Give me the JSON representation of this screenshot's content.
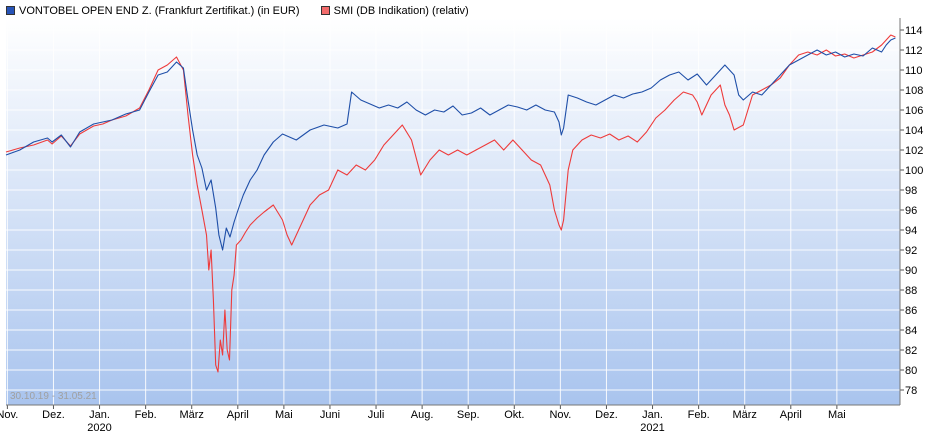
{
  "legend": {
    "vontobel_label": "VONTOBEL OPEN END Z. (Frankfurt Zertifikat.) (in EUR)",
    "smi_label": "SMI (DB Indikation) (relativ)"
  },
  "date_range": "30.10.19 - 31.05.21",
  "chart_data": {
    "type": "line",
    "ylim": [
      76.5,
      115.2
    ],
    "xlim": [
      0,
      19.4
    ],
    "yticks": [
      78,
      80,
      82,
      84,
      86,
      88,
      90,
      92,
      94,
      96,
      98,
      100,
      102,
      104,
      106,
      108,
      110,
      112,
      114
    ],
    "xticks": [
      {
        "t": 0.03,
        "label": "Nov.",
        "year": ""
      },
      {
        "t": 1.03,
        "label": "Dez.",
        "year": ""
      },
      {
        "t": 2.03,
        "label": "Jan.",
        "year": "2020"
      },
      {
        "t": 3.03,
        "label": "Feb.",
        "year": ""
      },
      {
        "t": 4.03,
        "label": "März",
        "year": ""
      },
      {
        "t": 5.03,
        "label": "April",
        "year": ""
      },
      {
        "t": 6.03,
        "label": "Mai",
        "year": ""
      },
      {
        "t": 7.03,
        "label": "Juni",
        "year": ""
      },
      {
        "t": 8.03,
        "label": "Juli",
        "year": ""
      },
      {
        "t": 9.03,
        "label": "Aug.",
        "year": ""
      },
      {
        "t": 10.03,
        "label": "Sep.",
        "year": ""
      },
      {
        "t": 11.03,
        "label": "Okt.",
        "year": ""
      },
      {
        "t": 12.03,
        "label": "Nov.",
        "year": ""
      },
      {
        "t": 13.03,
        "label": "Dez.",
        "year": ""
      },
      {
        "t": 14.03,
        "label": "Jan.",
        "year": "2021"
      },
      {
        "t": 15.03,
        "label": "Feb.",
        "year": ""
      },
      {
        "t": 16.03,
        "label": "März",
        "year": ""
      },
      {
        "t": 17.03,
        "label": "April",
        "year": ""
      },
      {
        "t": 18.03,
        "label": "Mai",
        "year": ""
      }
    ],
    "grid": true,
    "legend_position": "top-left",
    "series": [
      {
        "name": "VONTOBEL OPEN END Z. (Frankfurt Zertifikat.) (in EUR)",
        "color": "#1f4fa8",
        "points": [
          [
            0.0,
            101.5
          ],
          [
            0.3,
            102.0
          ],
          [
            0.6,
            102.8
          ],
          [
            0.9,
            103.2
          ],
          [
            1.0,
            102.8
          ],
          [
            1.2,
            103.5
          ],
          [
            1.4,
            102.3
          ],
          [
            1.6,
            103.8
          ],
          [
            1.9,
            104.6
          ],
          [
            2.1,
            104.8
          ],
          [
            2.3,
            105.0
          ],
          [
            2.6,
            105.6
          ],
          [
            2.9,
            106.0
          ],
          [
            3.1,
            107.8
          ],
          [
            3.3,
            109.5
          ],
          [
            3.5,
            109.8
          ],
          [
            3.7,
            110.8
          ],
          [
            3.85,
            110.2
          ],
          [
            3.95,
            107.0
          ],
          [
            4.05,
            104.0
          ],
          [
            4.15,
            101.5
          ],
          [
            4.25,
            100.2
          ],
          [
            4.35,
            98.0
          ],
          [
            4.45,
            99.0
          ],
          [
            4.55,
            96.2
          ],
          [
            4.62,
            93.5
          ],
          [
            4.7,
            92.0
          ],
          [
            4.78,
            94.2
          ],
          [
            4.86,
            93.3
          ],
          [
            4.95,
            94.8
          ],
          [
            5.05,
            96.2
          ],
          [
            5.15,
            97.5
          ],
          [
            5.3,
            99.0
          ],
          [
            5.45,
            100.0
          ],
          [
            5.6,
            101.5
          ],
          [
            5.8,
            102.8
          ],
          [
            6.0,
            103.6
          ],
          [
            6.3,
            103.0
          ],
          [
            6.6,
            104.0
          ],
          [
            6.9,
            104.5
          ],
          [
            7.2,
            104.2
          ],
          [
            7.4,
            104.6
          ],
          [
            7.5,
            107.8
          ],
          [
            7.7,
            107.0
          ],
          [
            7.9,
            106.6
          ],
          [
            8.1,
            106.2
          ],
          [
            8.3,
            106.5
          ],
          [
            8.5,
            106.2
          ],
          [
            8.7,
            106.8
          ],
          [
            8.9,
            106.0
          ],
          [
            9.1,
            105.5
          ],
          [
            9.3,
            106.0
          ],
          [
            9.5,
            105.8
          ],
          [
            9.7,
            106.4
          ],
          [
            9.9,
            105.5
          ],
          [
            10.1,
            105.7
          ],
          [
            10.3,
            106.2
          ],
          [
            10.5,
            105.5
          ],
          [
            10.7,
            106.0
          ],
          [
            10.9,
            106.5
          ],
          [
            11.1,
            106.3
          ],
          [
            11.3,
            106.0
          ],
          [
            11.5,
            106.5
          ],
          [
            11.7,
            106.0
          ],
          [
            11.9,
            105.8
          ],
          [
            12.0,
            104.8
          ],
          [
            12.05,
            103.5
          ],
          [
            12.1,
            104.2
          ],
          [
            12.2,
            107.5
          ],
          [
            12.4,
            107.2
          ],
          [
            12.6,
            106.8
          ],
          [
            12.8,
            106.5
          ],
          [
            13.0,
            107.0
          ],
          [
            13.2,
            107.5
          ],
          [
            13.4,
            107.2
          ],
          [
            13.6,
            107.6
          ],
          [
            13.8,
            107.8
          ],
          [
            14.0,
            108.2
          ],
          [
            14.2,
            109.0
          ],
          [
            14.4,
            109.5
          ],
          [
            14.6,
            109.8
          ],
          [
            14.8,
            109.0
          ],
          [
            15.0,
            109.6
          ],
          [
            15.2,
            108.5
          ],
          [
            15.4,
            109.5
          ],
          [
            15.6,
            110.5
          ],
          [
            15.8,
            109.5
          ],
          [
            15.9,
            107.5
          ],
          [
            16.0,
            107.0
          ],
          [
            16.2,
            107.8
          ],
          [
            16.4,
            107.5
          ],
          [
            16.6,
            108.5
          ],
          [
            16.8,
            109.5
          ],
          [
            17.0,
            110.5
          ],
          [
            17.2,
            111.0
          ],
          [
            17.4,
            111.5
          ],
          [
            17.6,
            112.0
          ],
          [
            17.8,
            111.5
          ],
          [
            18.0,
            111.8
          ],
          [
            18.2,
            111.3
          ],
          [
            18.4,
            111.6
          ],
          [
            18.6,
            111.4
          ],
          [
            18.8,
            112.2
          ],
          [
            19.0,
            111.8
          ],
          [
            19.1,
            112.5
          ],
          [
            19.2,
            113.0
          ],
          [
            19.3,
            113.2
          ]
        ]
      },
      {
        "name": "SMI (DB Indikation) (relativ)",
        "color": "#ee3b3b",
        "points": [
          [
            0.0,
            101.8
          ],
          [
            0.3,
            102.2
          ],
          [
            0.6,
            102.5
          ],
          [
            0.9,
            103.0
          ],
          [
            1.0,
            102.6
          ],
          [
            1.2,
            103.4
          ],
          [
            1.4,
            102.4
          ],
          [
            1.6,
            103.6
          ],
          [
            1.9,
            104.4
          ],
          [
            2.1,
            104.6
          ],
          [
            2.3,
            105.0
          ],
          [
            2.6,
            105.4
          ],
          [
            2.9,
            106.2
          ],
          [
            3.1,
            108.0
          ],
          [
            3.3,
            110.0
          ],
          [
            3.5,
            110.5
          ],
          [
            3.7,
            111.3
          ],
          [
            3.85,
            110.0
          ],
          [
            3.95,
            105.5
          ],
          [
            4.05,
            101.5
          ],
          [
            4.15,
            98.5
          ],
          [
            4.25,
            96.0
          ],
          [
            4.35,
            93.5
          ],
          [
            4.4,
            90.0
          ],
          [
            4.45,
            92.0
          ],
          [
            4.5,
            87.0
          ],
          [
            4.55,
            80.5
          ],
          [
            4.6,
            79.8
          ],
          [
            4.65,
            83.0
          ],
          [
            4.7,
            81.5
          ],
          [
            4.75,
            86.0
          ],
          [
            4.8,
            82.0
          ],
          [
            4.85,
            81.0
          ],
          [
            4.9,
            88.0
          ],
          [
            4.95,
            89.5
          ],
          [
            5.0,
            92.5
          ],
          [
            5.1,
            93.0
          ],
          [
            5.2,
            93.8
          ],
          [
            5.3,
            94.5
          ],
          [
            5.45,
            95.2
          ],
          [
            5.6,
            95.8
          ],
          [
            5.8,
            96.5
          ],
          [
            6.0,
            95.0
          ],
          [
            6.1,
            93.5
          ],
          [
            6.2,
            92.5
          ],
          [
            6.4,
            94.5
          ],
          [
            6.6,
            96.5
          ],
          [
            6.8,
            97.5
          ],
          [
            7.0,
            98.0
          ],
          [
            7.2,
            100.0
          ],
          [
            7.4,
            99.5
          ],
          [
            7.6,
            100.5
          ],
          [
            7.8,
            100.0
          ],
          [
            8.0,
            101.0
          ],
          [
            8.2,
            102.5
          ],
          [
            8.4,
            103.5
          ],
          [
            8.6,
            104.5
          ],
          [
            8.8,
            103.0
          ],
          [
            9.0,
            99.5
          ],
          [
            9.2,
            101.0
          ],
          [
            9.4,
            102.0
          ],
          [
            9.6,
            101.5
          ],
          [
            9.8,
            102.0
          ],
          [
            10.0,
            101.5
          ],
          [
            10.2,
            102.0
          ],
          [
            10.4,
            102.5
          ],
          [
            10.6,
            103.0
          ],
          [
            10.8,
            102.0
          ],
          [
            11.0,
            103.0
          ],
          [
            11.2,
            102.0
          ],
          [
            11.4,
            101.0
          ],
          [
            11.6,
            100.5
          ],
          [
            11.8,
            98.5
          ],
          [
            11.9,
            96.0
          ],
          [
            12.0,
            94.5
          ],
          [
            12.05,
            94.0
          ],
          [
            12.1,
            95.0
          ],
          [
            12.2,
            100.0
          ],
          [
            12.3,
            102.0
          ],
          [
            12.5,
            103.0
          ],
          [
            12.7,
            103.5
          ],
          [
            12.9,
            103.2
          ],
          [
            13.1,
            103.6
          ],
          [
            13.3,
            103.0
          ],
          [
            13.5,
            103.4
          ],
          [
            13.7,
            102.8
          ],
          [
            13.9,
            103.8
          ],
          [
            14.1,
            105.2
          ],
          [
            14.3,
            106.0
          ],
          [
            14.5,
            107.0
          ],
          [
            14.7,
            107.8
          ],
          [
            14.9,
            107.5
          ],
          [
            15.0,
            106.8
          ],
          [
            15.1,
            105.5
          ],
          [
            15.3,
            107.5
          ],
          [
            15.5,
            108.5
          ],
          [
            15.6,
            106.5
          ],
          [
            15.7,
            105.5
          ],
          [
            15.8,
            104.0
          ],
          [
            16.0,
            104.5
          ],
          [
            16.2,
            107.5
          ],
          [
            16.4,
            108.0
          ],
          [
            16.6,
            108.5
          ],
          [
            16.8,
            109.2
          ],
          [
            17.0,
            110.5
          ],
          [
            17.2,
            111.5
          ],
          [
            17.4,
            111.8
          ],
          [
            17.6,
            111.5
          ],
          [
            17.8,
            112.0
          ],
          [
            18.0,
            111.4
          ],
          [
            18.2,
            111.6
          ],
          [
            18.4,
            111.2
          ],
          [
            18.6,
            111.5
          ],
          [
            18.8,
            111.8
          ],
          [
            19.0,
            112.5
          ],
          [
            19.1,
            113.0
          ],
          [
            19.2,
            113.5
          ],
          [
            19.3,
            113.3
          ]
        ]
      }
    ]
  }
}
